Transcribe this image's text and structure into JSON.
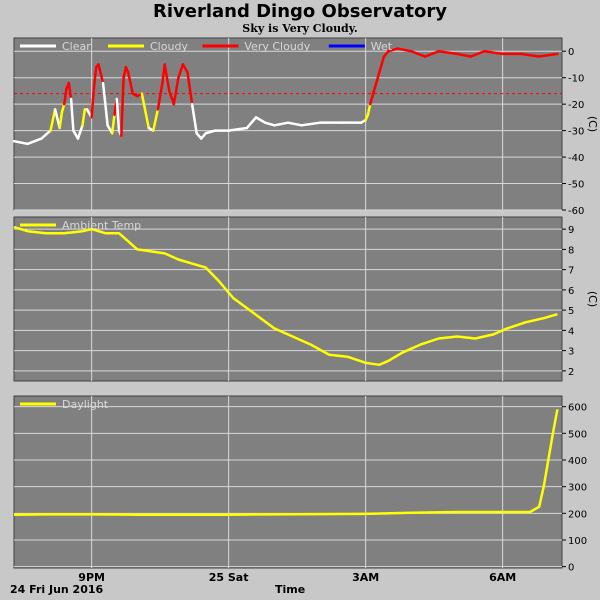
{
  "title": "Riverland Dingo Observatory",
  "subtitle": "Sky is Very Cloudy.",
  "x_axis": {
    "title": "Time",
    "date_label": "24 Fri Jun 2016",
    "ticks": [
      {
        "label": "9PM",
        "hour": 21
      },
      {
        "label": "25 Sat",
        "hour": 24
      },
      {
        "label": "3AM",
        "hour": 27
      },
      {
        "label": "6AM",
        "hour": 30
      }
    ],
    "range_hours": [
      19.3,
      31.3
    ]
  },
  "colors": {
    "background": "#c8c8c8",
    "plot_background": "#808080",
    "grid": "#d8d8d8",
    "clear": "#ffffff",
    "cloudy": "#ffff00",
    "very_cloudy": "#ff0000",
    "wet": "#0000ff",
    "threshold": "#ff0000",
    "ambient": "#ffff00",
    "daylight": "#ffff00"
  },
  "chart_data": [
    {
      "type": "line",
      "panel": "sky",
      "legend": [
        {
          "name": "Clear",
          "color": "#ffffff"
        },
        {
          "name": "Cloudy",
          "color": "#ffff00"
        },
        {
          "name": "Very Cloudy",
          "color": "#ff0000"
        },
        {
          "name": "Wet",
          "color": "#0000ff"
        }
      ],
      "ylabel": "(C)",
      "ylim": [
        -60,
        5
      ],
      "yticks": [
        0,
        -10,
        -20,
        -30,
        -40,
        -50,
        -60
      ],
      "threshold": -16,
      "x": [
        19.3,
        19.6,
        19.9,
        20.1,
        20.2,
        20.3,
        20.35,
        20.4,
        20.45,
        20.5,
        20.55,
        20.6,
        20.7,
        20.8,
        20.85,
        20.9,
        21.0,
        21.05,
        21.1,
        21.15,
        21.25,
        21.35,
        21.45,
        21.5,
        21.55,
        21.6,
        21.65,
        21.7,
        21.75,
        21.8,
        21.9,
        22.0,
        22.1,
        22.25,
        22.35,
        22.45,
        22.55,
        22.6,
        22.7,
        22.8,
        22.9,
        23.0,
        23.1,
        23.2,
        23.3,
        23.4,
        23.5,
        23.7,
        24.0,
        24.4,
        24.6,
        24.8,
        25.0,
        25.3,
        25.6,
        26.0,
        26.5,
        26.9,
        27.0,
        27.05,
        27.1,
        27.2,
        27.3,
        27.4,
        27.5,
        27.7,
        28.0,
        28.3,
        28.6,
        29.0,
        29.3,
        29.6,
        30.0,
        30.4,
        30.8,
        31.2
      ],
      "y": [
        -34,
        -35,
        -33,
        -30,
        -22,
        -29,
        -23,
        -20,
        -14,
        -12,
        -18,
        -30,
        -33,
        -28,
        -22,
        -22,
        -25,
        -14,
        -6,
        -5,
        -12,
        -28,
        -31,
        -24,
        -18,
        -30,
        -32,
        -10,
        -6,
        -8,
        -16,
        -17,
        -16,
        -29,
        -30,
        -22,
        -12,
        -5,
        -15,
        -20,
        -10,
        -5,
        -8,
        -20,
        -31,
        -33,
        -31,
        -30,
        -30,
        -29,
        -25,
        -27,
        -28,
        -27,
        -28,
        -27,
        -27,
        -27,
        -26,
        -24,
        -20,
        -14,
        -8,
        -2,
        0,
        1,
        0,
        -2,
        0,
        -1,
        -2,
        0,
        -1,
        -1,
        -2,
        -1
      ],
      "condition": [
        "Clear",
        "Clear",
        "Clear",
        "Clear",
        "Cloudy",
        "Clear",
        "Cloudy",
        "Cloudy",
        "Very Cloudy",
        "Very Cloudy",
        "Very Cloudy",
        "Clear",
        "Clear",
        "Clear",
        "Cloudy",
        "Cloudy",
        "Clear",
        "Very Cloudy",
        "Very Cloudy",
        "Very Cloudy",
        "Very Cloudy",
        "Clear",
        "Clear",
        "Cloudy",
        "Very Cloudy",
        "Clear",
        "Clear",
        "Very Cloudy",
        "Very Cloudy",
        "Very Cloudy",
        "Very Cloudy",
        "Very Cloudy",
        "Very Cloudy",
        "Cloudy",
        "Clear",
        "Cloudy",
        "Very Cloudy",
        "Very Cloudy",
        "Very Cloudy",
        "Very Cloudy",
        "Very Cloudy",
        "Very Cloudy",
        "Very Cloudy",
        "Very Cloudy",
        "Clear",
        "Clear",
        "Clear",
        "Clear",
        "Clear",
        "Clear",
        "Clear",
        "Clear",
        "Clear",
        "Clear",
        "Clear",
        "Clear",
        "Clear",
        "Clear",
        "Clear",
        "Cloudy",
        "Cloudy",
        "Very Cloudy",
        "Very Cloudy",
        "Very Cloudy",
        "Very Cloudy",
        "Very Cloudy",
        "Very Cloudy",
        "Very Cloudy",
        "Very Cloudy",
        "Very Cloudy",
        "Very Cloudy",
        "Very Cloudy",
        "Very Cloudy",
        "Very Cloudy",
        "Very Cloudy",
        "Very Cloudy"
      ]
    },
    {
      "type": "line",
      "panel": "ambient",
      "legend": [
        {
          "name": "Ambient Temp",
          "color": "#ffff00"
        }
      ],
      "ylabel": "(C)",
      "ylim": [
        1.5,
        9.6
      ],
      "yticks": [
        2,
        3,
        4,
        5,
        6,
        7,
        8,
        9
      ],
      "x": [
        19.3,
        19.6,
        20.0,
        20.4,
        20.8,
        21.0,
        21.3,
        21.6,
        21.8,
        22.0,
        22.3,
        22.6,
        22.9,
        23.2,
        23.5,
        23.8,
        24.1,
        24.4,
        24.7,
        25.0,
        25.4,
        25.8,
        26.2,
        26.6,
        27.0,
        27.3,
        27.5,
        27.8,
        28.2,
        28.6,
        29.0,
        29.4,
        29.8,
        30.1,
        30.5,
        30.9,
        31.2
      ],
      "y": [
        9.1,
        8.9,
        8.8,
        8.8,
        8.9,
        9.0,
        8.8,
        8.8,
        8.4,
        8.0,
        7.9,
        7.8,
        7.5,
        7.3,
        7.1,
        6.4,
        5.6,
        5.1,
        4.6,
        4.1,
        3.7,
        3.3,
        2.8,
        2.7,
        2.4,
        2.3,
        2.5,
        2.9,
        3.3,
        3.6,
        3.7,
        3.6,
        3.8,
        4.1,
        4.4,
        4.6,
        4.8
      ]
    },
    {
      "type": "line",
      "panel": "daylight",
      "legend": [
        {
          "name": "Daylight",
          "color": "#ffff00"
        }
      ],
      "ylim": [
        -5,
        640
      ],
      "yticks": [
        0,
        100,
        200,
        300,
        400,
        500,
        600
      ],
      "x": [
        19.3,
        20.0,
        21.0,
        22.0,
        23.0,
        24.0,
        25.0,
        26.0,
        27.0,
        28.0,
        29.0,
        30.0,
        30.6,
        30.8,
        30.9,
        31.0,
        31.1,
        31.2
      ],
      "y": [
        195,
        196,
        196,
        195,
        195,
        195,
        196,
        197,
        198,
        202,
        205,
        205,
        205,
        225,
        300,
        400,
        500,
        590
      ]
    }
  ]
}
